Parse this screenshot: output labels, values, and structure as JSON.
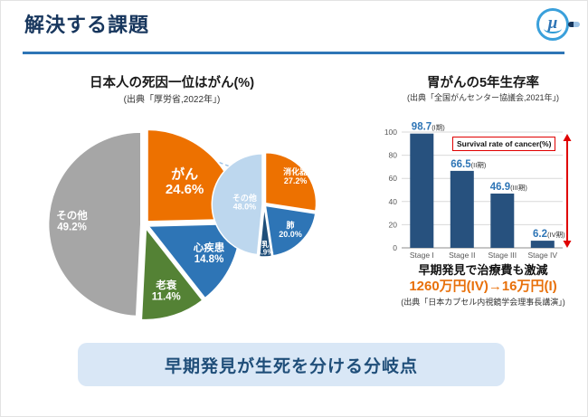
{
  "header": {
    "title": "解決する課題",
    "logo_text": "μ"
  },
  "right_panel": {
    "below_title": "早期発見で治療費も激減",
    "below_value": "1260万円(IV)→16万円(I)",
    "below_source": "(出典「日本カプセル内視鏡学会理事長講演」)"
  },
  "banner": {
    "text": "早期発見が生死を分ける分岐点"
  },
  "colors": {
    "accent_blue": "#2E75B6",
    "title_navy": "#17365D",
    "orange": "#ED7100",
    "red": "#E00000",
    "banner_bg": "#D9E7F6",
    "banner_text": "#1F4E79"
  },
  "chart_data": [
    {
      "type": "pie",
      "title": "日本人の死因一位はがん(%)",
      "source": "(出典「厚労省,2022年」)",
      "slices": [
        {
          "label": "がん",
          "value": 24.6,
          "color": "#ED7100",
          "label_size": 15,
          "label_r": 0.58
        },
        {
          "label": "心疾患",
          "value": 14.8,
          "color": "#2E75B6",
          "label_size": 11.5,
          "label_r": 0.73
        },
        {
          "label": "老衰",
          "value": 11.4,
          "color": "#548235",
          "label_size": 11.5,
          "label_r": 0.73
        },
        {
          "label": "その他",
          "value": 49.2,
          "color": "#A6A6A6",
          "label_size": 11.5,
          "label_r": 0.75
        }
      ]
    },
    {
      "type": "pie",
      "slices": [
        {
          "label": "消化器",
          "value": 27.2,
          "color": "#ED7100",
          "label_size": 9,
          "label_r": 0.78
        },
        {
          "label": "肺",
          "value": 20.0,
          "color": "#2E75B6",
          "label_size": 9,
          "label_r": 0.7
        },
        {
          "label": "乳",
          "value": 3.9,
          "color": "#1F4E79",
          "label_size": 8,
          "label_r": 0.85
        },
        {
          "label": "その他",
          "value": 48.0,
          "color": "#BDD7EE",
          "label_size": 9,
          "label_r": 0.35
        }
      ]
    },
    {
      "type": "bar",
      "title": "胃がんの5年生存率",
      "source": "(出典「全国がんセンター協議会,2021年」)",
      "annotation": "Survival rate of cancer(%)",
      "categories": [
        "Stage I",
        "Stage II",
        "Stage III",
        "Stage IV"
      ],
      "values": [
        98.7,
        66.5,
        46.9,
        6.2
      ],
      "stage_labels": [
        "(I期)",
        "(II期)",
        "(III期)",
        "(IV期)"
      ],
      "ylim": [
        0,
        100
      ],
      "yticks": [
        0,
        20,
        40,
        60,
        80,
        100
      ],
      "bar_color": "#27517E",
      "value_color": "#2E75B6",
      "grid": true,
      "legend": "none"
    }
  ]
}
